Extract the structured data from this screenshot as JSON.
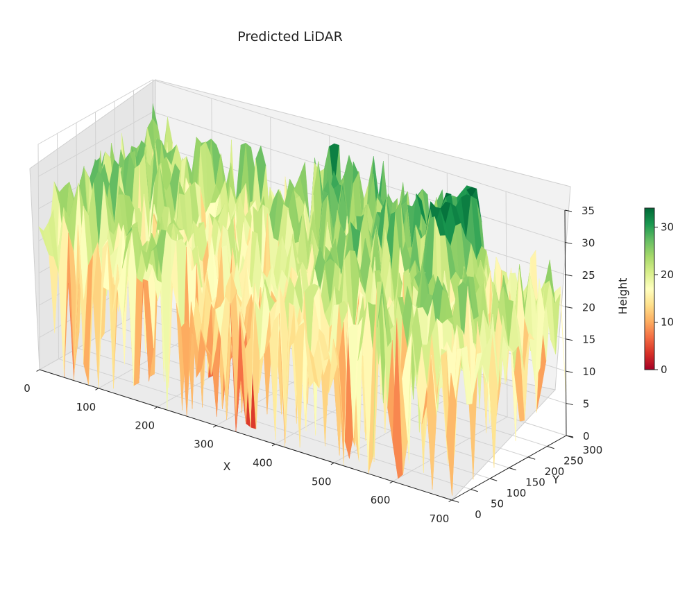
{
  "chart_data": {
    "type": "surface",
    "title": "Predicted LiDAR",
    "xlabel": "X",
    "ylabel": "Y",
    "zlabel": "Height",
    "colormap": "RdYlGn",
    "colormap_stops": [
      "#a50026",
      "#d73027",
      "#f46d43",
      "#fdae61",
      "#fee08b",
      "#ffffbf",
      "#d9ef8b",
      "#a6d96a",
      "#66bd63",
      "#1a9850",
      "#006837"
    ],
    "xlim": [
      0,
      700
    ],
    "ylim": [
      0,
      300
    ],
    "zlim": [
      0,
      35
    ],
    "x_ticks": [
      "0",
      "100",
      "200",
      "300",
      "400",
      "500",
      "600",
      "700"
    ],
    "y_ticks": [
      "0",
      "50",
      "100",
      "150",
      "200",
      "250",
      "300"
    ],
    "z_ticks": [
      "0",
      "5",
      "10",
      "15",
      "20",
      "25",
      "30",
      "35"
    ],
    "colorbar": {
      "min": 0,
      "max": 34,
      "ticks": [
        "0",
        "10",
        "20",
        "30"
      ]
    },
    "grid": true,
    "surface_extent": {
      "x": [
        0,
        700
      ],
      "y": [
        0,
        300
      ]
    },
    "height_range": [
      0,
      34
    ]
  }
}
